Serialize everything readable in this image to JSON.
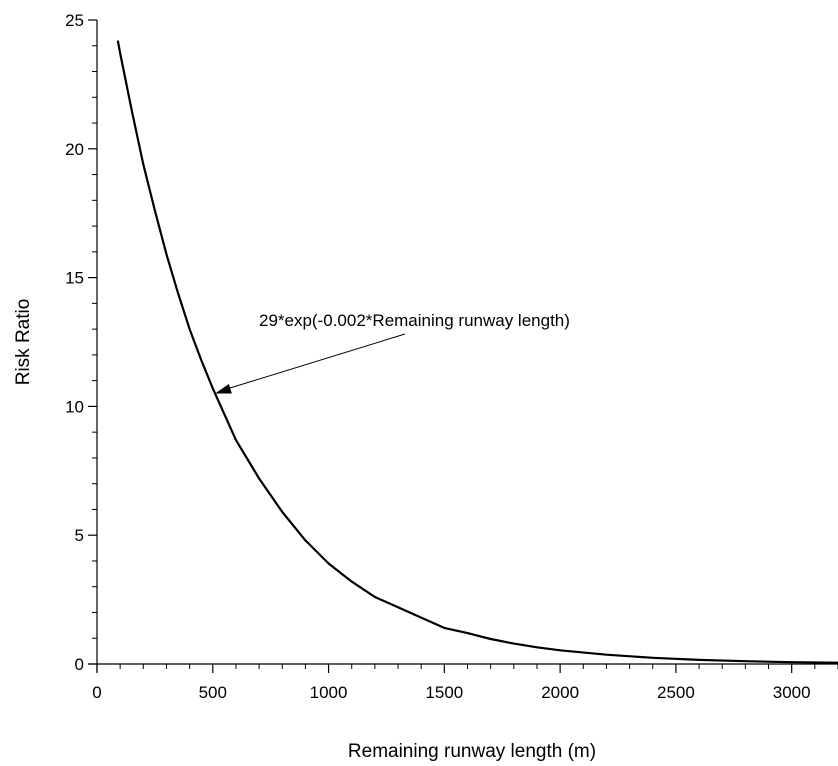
{
  "chart_data": {
    "type": "line",
    "title": "",
    "xlabel": "Remaining runway length (m)",
    "ylabel": "Risk Ratio",
    "xlim": [
      0,
      3200
    ],
    "ylim": [
      0,
      25
    ],
    "x_ticks": [
      "0",
      "500",
      "1000",
      "1500",
      "2000",
      "2500",
      "3000"
    ],
    "y_ticks": [
      "0",
      "5",
      "10",
      "15",
      "20",
      "25"
    ],
    "x_tick_values": [
      0,
      500,
      1000,
      1500,
      2000,
      2500,
      3000
    ],
    "y_tick_values": [
      0,
      5,
      10,
      15,
      20,
      25
    ],
    "grid": false,
    "series": [
      {
        "x": [
          90,
          100,
          150,
          200,
          250,
          300,
          350,
          400,
          450,
          500,
          600,
          700,
          800,
          900,
          1000,
          1100,
          1200,
          1300,
          1400,
          1500,
          1600,
          1700,
          1800,
          1900,
          2000,
          2200,
          2400,
          2600,
          2800,
          3000,
          3200
        ],
        "y": [
          24.2,
          23.7,
          21.5,
          19.4,
          17.6,
          15.9,
          14.4,
          13.0,
          11.8,
          10.7,
          8.7,
          7.2,
          5.9,
          4.8,
          3.9,
          3.2,
          2.6,
          2.2,
          1.8,
          1.4,
          1.2,
          0.97,
          0.79,
          0.65,
          0.53,
          0.36,
          0.24,
          0.16,
          0.11,
          0.07,
          0.05
        ]
      }
    ],
    "annotations": [
      {
        "text": "29*exp(-0.002*Remaining runway length)",
        "target_x": 510,
        "target_y": 10.5
      }
    ]
  }
}
